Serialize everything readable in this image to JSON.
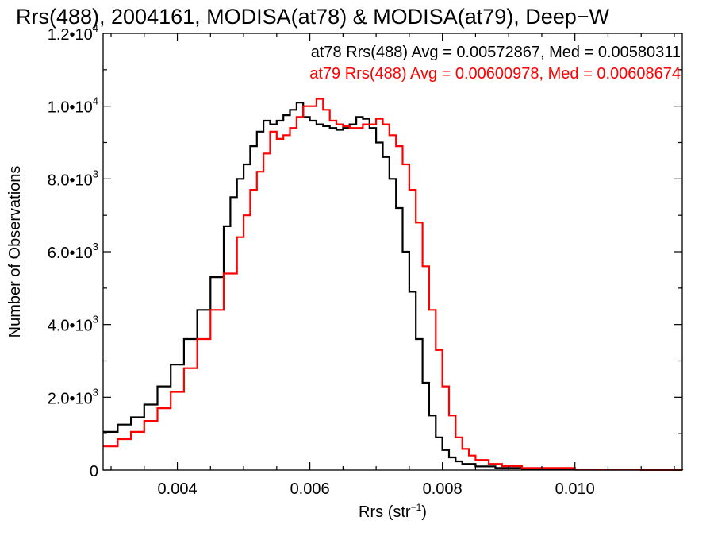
{
  "chart_data": {
    "type": "line",
    "title": "Rrs(488), 2004161, MODISA(at78) & MODISA(at79), Deep−W",
    "xlabel": "Rrs (str",
    "xlabel_sup": "−1",
    "xlabel_tail": ")",
    "ylabel": "Number of Observations",
    "xlim": [
      0.00288,
      0.01162
    ],
    "ylim": [
      0,
      12000
    ],
    "x_ticks": [
      {
        "value": 0.004,
        "label": "0.004"
      },
      {
        "value": 0.006,
        "label": "0.006"
      },
      {
        "value": 0.008,
        "label": "0.008"
      },
      {
        "value": 0.01,
        "label": "0.010"
      }
    ],
    "y_ticks": [
      {
        "value": 0,
        "mant": "0",
        "exp": ""
      },
      {
        "value": 2000,
        "mant": "2.0•10",
        "exp": "3"
      },
      {
        "value": 4000,
        "mant": "4.0•10",
        "exp": "3"
      },
      {
        "value": 6000,
        "mant": "6.0•10",
        "exp": "3"
      },
      {
        "value": 8000,
        "mant": "8.0•10",
        "exp": "3"
      },
      {
        "value": 10000,
        "mant": "1.0•10",
        "exp": "4"
      },
      {
        "value": 12000,
        "mant": "1.2•10",
        "exp": "4"
      }
    ],
    "grid": false,
    "legend_position": "top-right",
    "series": [
      {
        "name": "at78",
        "color": "#000000",
        "annotation": "at78 Rrs(488) Avg = 0.00572867, Med = 0.00580311",
        "points": [
          [
            0.00288,
            1050
          ],
          [
            0.0031,
            1250
          ],
          [
            0.0033,
            1450
          ],
          [
            0.0035,
            1800
          ],
          [
            0.0037,
            2300
          ],
          [
            0.0039,
            2900
          ],
          [
            0.0041,
            3600
          ],
          [
            0.0043,
            4400
          ],
          [
            0.0045,
            5300
          ],
          [
            0.0047,
            6700
          ],
          [
            0.0048,
            7500
          ],
          [
            0.0049,
            8000
          ],
          [
            0.005,
            8400
          ],
          [
            0.0051,
            8900
          ],
          [
            0.0052,
            9300
          ],
          [
            0.0053,
            9600
          ],
          [
            0.0054,
            9500
          ],
          [
            0.0055,
            9600
          ],
          [
            0.0056,
            9750
          ],
          [
            0.0057,
            9900
          ],
          [
            0.0058,
            10100
          ],
          [
            0.0059,
            9700
          ],
          [
            0.006,
            9600
          ],
          [
            0.0061,
            9500
          ],
          [
            0.0062,
            9450
          ],
          [
            0.0063,
            9400
          ],
          [
            0.0064,
            9350
          ],
          [
            0.0065,
            9400
          ],
          [
            0.0066,
            9500
          ],
          [
            0.0067,
            9700
          ],
          [
            0.0068,
            9650
          ],
          [
            0.0069,
            9400
          ],
          [
            0.007,
            9000
          ],
          [
            0.0071,
            8600
          ],
          [
            0.0072,
            8000
          ],
          [
            0.0073,
            7200
          ],
          [
            0.0074,
            6000
          ],
          [
            0.0075,
            4900
          ],
          [
            0.0076,
            3600
          ],
          [
            0.0077,
            2400
          ],
          [
            0.0078,
            1500
          ],
          [
            0.0079,
            900
          ],
          [
            0.008,
            550
          ],
          [
            0.0081,
            350
          ],
          [
            0.0082,
            240
          ],
          [
            0.0083,
            170
          ],
          [
            0.0085,
            100
          ],
          [
            0.0088,
            60
          ],
          [
            0.0092,
            30
          ],
          [
            0.01,
            12
          ],
          [
            0.011,
            5
          ],
          [
            0.01162,
            3
          ]
        ]
      },
      {
        "name": "at79",
        "color": "#ff0000",
        "annotation": "at79 Rrs(488) Avg = 0.00600978, Med = 0.00608674",
        "points": [
          [
            0.00288,
            650
          ],
          [
            0.0031,
            850
          ],
          [
            0.0033,
            1050
          ],
          [
            0.0035,
            1350
          ],
          [
            0.0037,
            1700
          ],
          [
            0.0039,
            2150
          ],
          [
            0.0041,
            2800
          ],
          [
            0.0043,
            3600
          ],
          [
            0.0045,
            4400
          ],
          [
            0.0047,
            5400
          ],
          [
            0.0049,
            6400
          ],
          [
            0.005,
            7000
          ],
          [
            0.0051,
            7700
          ],
          [
            0.0052,
            8200
          ],
          [
            0.0053,
            8700
          ],
          [
            0.0054,
            9300
          ],
          [
            0.0055,
            9100
          ],
          [
            0.0056,
            9200
          ],
          [
            0.0057,
            9400
          ],
          [
            0.0058,
            9700
          ],
          [
            0.0059,
            10000
          ],
          [
            0.006,
            10000
          ],
          [
            0.0061,
            10200
          ],
          [
            0.0062,
            9900
          ],
          [
            0.0063,
            9600
          ],
          [
            0.0064,
            9500
          ],
          [
            0.0065,
            9450
          ],
          [
            0.0066,
            9400
          ],
          [
            0.0067,
            9400
          ],
          [
            0.0068,
            9500
          ],
          [
            0.0069,
            9500
          ],
          [
            0.007,
            9650
          ],
          [
            0.0071,
            9500
          ],
          [
            0.0072,
            9200
          ],
          [
            0.0073,
            8900
          ],
          [
            0.0074,
            8400
          ],
          [
            0.0075,
            7700
          ],
          [
            0.0076,
            6800
          ],
          [
            0.0077,
            5600
          ],
          [
            0.0078,
            4400
          ],
          [
            0.0079,
            3300
          ],
          [
            0.008,
            2300
          ],
          [
            0.0081,
            1500
          ],
          [
            0.0082,
            900
          ],
          [
            0.0083,
            580
          ],
          [
            0.0084,
            400
          ],
          [
            0.0085,
            280
          ],
          [
            0.0087,
            170
          ],
          [
            0.0089,
            110
          ],
          [
            0.0092,
            60
          ],
          [
            0.01,
            20
          ],
          [
            0.011,
            6
          ],
          [
            0.01162,
            4
          ]
        ]
      }
    ]
  }
}
